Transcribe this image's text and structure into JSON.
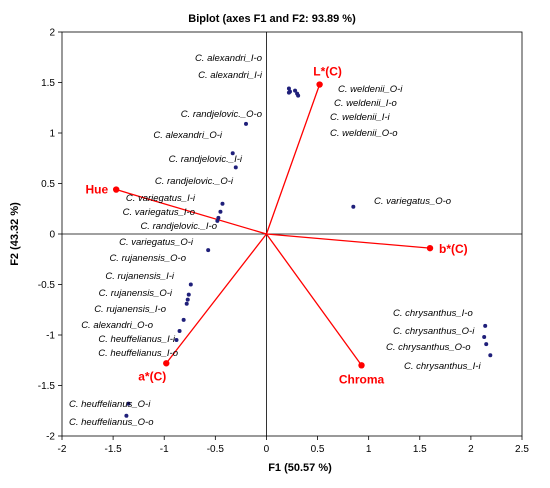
{
  "chart_data": {
    "type": "scatter",
    "title": "Biplot (axes F1 and F2: 93.89 %)",
    "xlabel": "F1 (50.57 %)",
    "ylabel": "F2 (43.32 %)",
    "xlim": [
      -2,
      2.5
    ],
    "ylim": [
      -2,
      2
    ],
    "xticks": [
      "-2",
      "-1.5",
      "-1",
      "-0.5",
      "0",
      "0.5",
      "1",
      "1.5",
      "2",
      "2.5"
    ],
    "yticks": [
      "-2",
      "-1.5",
      "-1",
      "-0.5",
      "0",
      "0.5",
      "1",
      "1.5",
      "2"
    ],
    "grid": false,
    "point_color": "#1f1f7a",
    "vector_color": "#ff0000",
    "observations": [
      {
        "label": "C. alexandri_I-o",
        "x": 0.22,
        "y": 1.44
      },
      {
        "label": "C. alexandri_I-i",
        "x": 0.23,
        "y": 1.41
      },
      {
        "label": "C. randjelovic._O-o",
        "x": -0.2,
        "y": 1.09
      },
      {
        "label": "C. alexandri_O-i",
        "x": -0.33,
        "y": 0.8
      },
      {
        "label": "C. randjelovic._I-i",
        "x": -0.3,
        "y": 0.66
      },
      {
        "label": "C. randjelovic._O-i",
        "x": -0.43,
        "y": 0.3
      },
      {
        "label": "C. variegatus_I-i",
        "x": -0.45,
        "y": 0.22
      },
      {
        "label": "C. variegatus_I-o",
        "x": -0.47,
        "y": 0.16
      },
      {
        "label": "C. randjelovic._I-o",
        "x": -0.48,
        "y": 0.13
      },
      {
        "label": "C. variegatus_O-i",
        "x": -0.57,
        "y": -0.16
      },
      {
        "label": "C. rujanensis_O-o",
        "x": -0.74,
        "y": -0.5
      },
      {
        "label": "C. rujanensis_I-i",
        "x": -0.76,
        "y": -0.6
      },
      {
        "label": "C. rujanensis_O-i",
        "x": -0.77,
        "y": -0.65
      },
      {
        "label": "C. rujanensis_I-o",
        "x": -0.78,
        "y": -0.69
      },
      {
        "label": "C. alexandri_O-o",
        "x": -0.81,
        "y": -0.85
      },
      {
        "label": "C. heuffelianus_I-i",
        "x": -0.85,
        "y": -0.96
      },
      {
        "label": "C. heuffelianus_I-o",
        "x": -0.88,
        "y": -1.05
      },
      {
        "label": "C. weldenii_O-i",
        "x": 0.28,
        "y": 1.42
      },
      {
        "label": "C. weldenii_I-o",
        "x": 0.3,
        "y": 1.39
      },
      {
        "label": "C. weldenii_I-i",
        "x": 0.22,
        "y": 1.4
      },
      {
        "label": "C. weldenii_O-o",
        "x": 0.31,
        "y": 1.37
      },
      {
        "label": "C. variegatus_O-o",
        "x": 0.85,
        "y": 0.27
      },
      {
        "label": "C. chrysanthus_I-o",
        "x": 2.14,
        "y": -0.91
      },
      {
        "label": "C. chrysanthus_O-i",
        "x": 2.13,
        "y": -1.02
      },
      {
        "label": "C. chrysanthus_O-o",
        "x": 2.15,
        "y": -1.09
      },
      {
        "label": "C. chrysanthus_I-i",
        "x": 2.19,
        "y": -1.2
      },
      {
        "label": "C. heuffelianus_O-i",
        "x": -1.35,
        "y": -1.68
      },
      {
        "label": "C. heuffelianus_O-o",
        "x": -1.37,
        "y": -1.8
      }
    ],
    "variables": [
      {
        "label": "L*(C)",
        "x": 0.52,
        "y": 1.48
      },
      {
        "label": "Hue",
        "x": -1.47,
        "y": 0.44
      },
      {
        "label": "b*(C)",
        "x": 1.6,
        "y": -0.14
      },
      {
        "label": "a*(C)",
        "x": -0.98,
        "y": -1.28
      },
      {
        "label": "Chroma",
        "x": 0.93,
        "y": -1.3
      }
    ]
  }
}
